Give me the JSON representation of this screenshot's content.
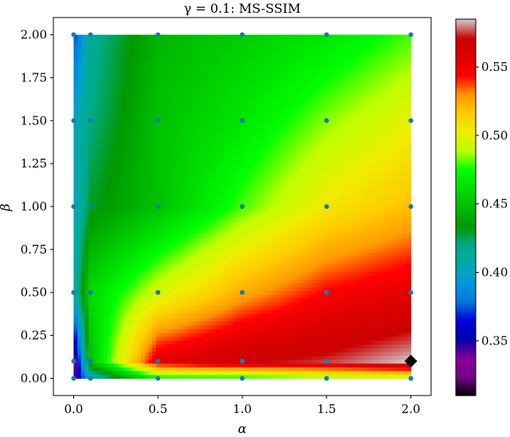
{
  "chart_data": {
    "type": "heatmap",
    "title": "γ = 0.1: MS-SSIM",
    "xlabel": "α",
    "ylabel": "β",
    "xlim": [
      -0.12,
      2.12
    ],
    "ylim": [
      -0.1,
      2.1
    ],
    "x_ticks": [
      0.0,
      0.5,
      1.0,
      1.5,
      2.0
    ],
    "x_tick_labels": [
      "0.0",
      "0.5",
      "1.0",
      "1.5",
      "2.0"
    ],
    "y_ticks": [
      0.0,
      0.25,
      0.5,
      0.75,
      1.0,
      1.25,
      1.5,
      1.75,
      2.0
    ],
    "y_tick_labels": [
      "0.00",
      "0.25",
      "0.50",
      "0.75",
      "1.00",
      "1.25",
      "1.50",
      "1.75",
      "2.00"
    ],
    "alpha_values": [
      0.0,
      0.1,
      0.5,
      1.0,
      1.5,
      2.0
    ],
    "beta_values": [
      0.0,
      0.1,
      0.5,
      1.0,
      1.5,
      2.0
    ],
    "z_values": [
      [
        0.34,
        0.4,
        0.47,
        0.47,
        0.48,
        0.49
      ],
      [
        0.33,
        0.45,
        0.555,
        0.57,
        0.575,
        0.585
      ],
      [
        0.405,
        0.46,
        0.495,
        0.525,
        0.545,
        0.555
      ],
      [
        0.4,
        0.43,
        0.45,
        0.48,
        0.505,
        0.52
      ],
      [
        0.4,
        0.42,
        0.45,
        0.465,
        0.485,
        0.5
      ],
      [
        0.37,
        0.415,
        0.445,
        0.455,
        0.465,
        0.48
      ]
    ],
    "best_point": {
      "alpha": 2.0,
      "beta": 0.1
    },
    "colorbar": {
      "min": 0.31,
      "max": 0.585,
      "ticks": [
        0.35,
        0.4,
        0.45,
        0.5,
        0.55
      ],
      "tick_labels": [
        "0.35",
        "0.40",
        "0.45",
        "0.50",
        "0.55"
      ],
      "colormap": "nipy_spectral"
    },
    "point_color": "#1f77b4",
    "best_marker_color": "#000000",
    "grid": false
  }
}
